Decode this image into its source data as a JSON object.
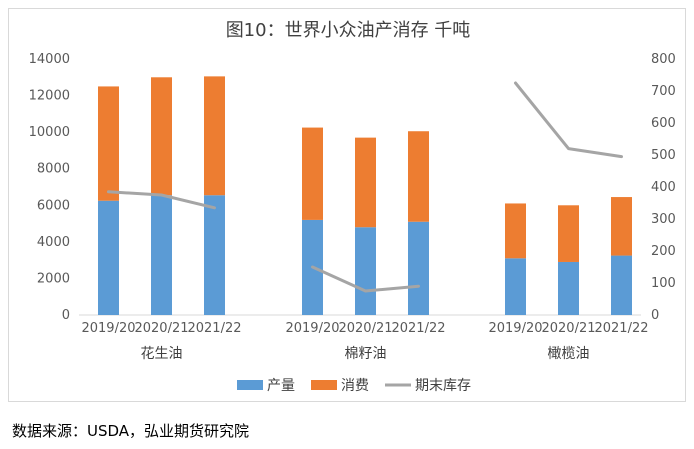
{
  "source_note": "数据来源：USDA，弘业期货研究院",
  "chart_data": {
    "type": "bar",
    "title": "图10：世界小众油产消存  千吨",
    "groups": [
      "花生油",
      "棉籽油",
      "橄榄油"
    ],
    "categories": [
      "2019/20",
      "2020/21",
      "2021/22"
    ],
    "series": [
      {
        "name": "产量",
        "kind": "bar",
        "axis": "left",
        "color": "#5B9BD5",
        "values": [
          [
            6250,
            6550,
            6550
          ],
          [
            5200,
            4800,
            5100
          ],
          [
            3100,
            2900,
            3250
          ]
        ]
      },
      {
        "name": "消费",
        "kind": "bar",
        "axis": "left",
        "color": "#ED7D31",
        "values": [
          [
            6250,
            6450,
            6500
          ],
          [
            5050,
            4900,
            4950
          ],
          [
            3000,
            3100,
            3200
          ]
        ]
      },
      {
        "name": "期末库存",
        "kind": "line",
        "axis": "right",
        "color": "#A5A5A5",
        "values": [
          [
            385,
            375,
            335
          ],
          [
            150,
            75,
            90
          ],
          [
            725,
            520,
            495
          ]
        ]
      }
    ],
    "y_left": {
      "min": 0,
      "max": 14000,
      "ticks": [
        0,
        2000,
        4000,
        6000,
        8000,
        10000,
        12000,
        14000
      ]
    },
    "y_right": {
      "min": 0,
      "max": 800,
      "ticks": [
        0,
        100,
        200,
        300,
        400,
        500,
        600,
        700,
        800
      ]
    },
    "grid": false,
    "legend_position": "bottom"
  }
}
